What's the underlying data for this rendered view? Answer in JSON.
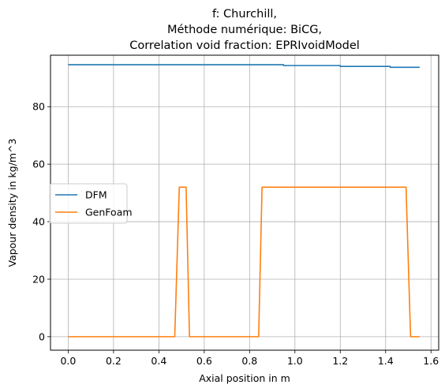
{
  "chart_data": {
    "type": "line",
    "title_lines": [
      "f: Churchill,",
      "Méthode numérique: BiCG,",
      "Correlation void fraction: EPRIvoidModel"
    ],
    "xlabel": "Axial position in m",
    "ylabel": "Vapour density in kg/m^3",
    "xlim": [
      -0.078,
      1.634
    ],
    "ylim": [
      -4.7,
      97.9
    ],
    "xticks": [
      0.0,
      0.2,
      0.4,
      0.6,
      0.8,
      1.0,
      1.2,
      1.4,
      1.6
    ],
    "xtick_labels": [
      "0.0",
      "0.2",
      "0.4",
      "0.6",
      "0.8",
      "1.0",
      "1.2",
      "1.4",
      "1.6"
    ],
    "yticks": [
      0,
      20,
      40,
      60,
      80
    ],
    "ytick_labels": [
      "0",
      "20",
      "40",
      "60",
      "80"
    ],
    "grid": true,
    "legend_position": "center-left",
    "series": [
      {
        "name": "DFM",
        "color": "#1f77b4",
        "x": [
          0.0,
          0.95,
          0.95,
          1.2,
          1.2,
          1.42,
          1.42,
          1.55
        ],
        "y": [
          94.6,
          94.6,
          94.3,
          94.3,
          94.0,
          94.0,
          93.7,
          93.7
        ]
      },
      {
        "name": "GenFoam",
        "color": "#ff7f0e",
        "x": [
          0.0,
          0.47,
          0.49,
          0.51,
          0.52,
          0.535,
          0.84,
          0.855,
          1.48,
          1.49,
          1.51,
          1.55
        ],
        "y": [
          0,
          0,
          52,
          52,
          52,
          0,
          0,
          52,
          52,
          52,
          0,
          0
        ]
      }
    ]
  }
}
